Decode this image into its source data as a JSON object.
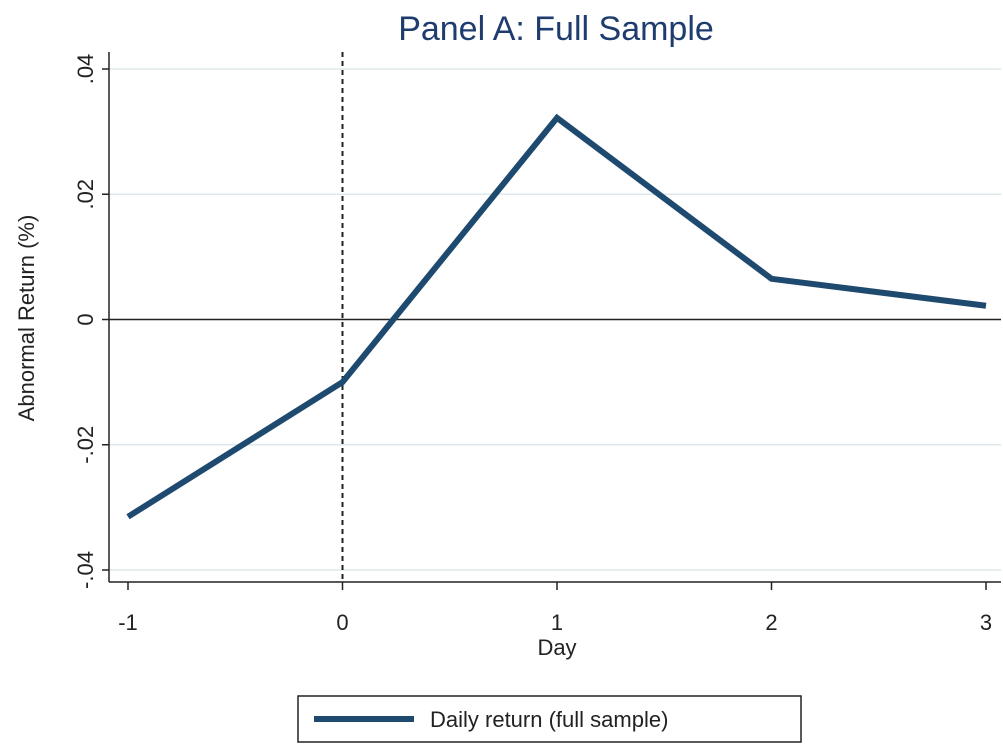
{
  "chart_data": {
    "type": "line",
    "title": "Panel A: Full Sample",
    "xlabel": "Day",
    "ylabel": "Abnormal Return (%)",
    "x": [
      -1,
      0,
      1,
      2,
      3
    ],
    "series": [
      {
        "name": "Daily return (full sample)",
        "values": [
          -0.0315,
          -0.01,
          0.0322,
          0.0065,
          0.0022
        ],
        "color": "#1f4a70"
      }
    ],
    "xlim": [
      -1,
      3
    ],
    "ylim": [
      -0.04,
      0.04
    ],
    "xticks": [
      -1,
      0,
      1,
      2,
      3
    ],
    "xtick_labels": [
      "-1",
      "0",
      "1",
      "2",
      "3"
    ],
    "yticks": [
      -0.04,
      -0.02,
      0,
      0.02,
      0.04
    ],
    "ytick_labels": [
      "-.04",
      "-.02",
      "0",
      ".02",
      ".04"
    ],
    "vline_x": 0,
    "hline_y": 0,
    "grid": true,
    "legend_position": "bottom",
    "colors": {
      "series": "#1f4a70",
      "title": "#1f3c6e",
      "grid": "#dde9ec",
      "axis": "#222222",
      "text": "#222222"
    }
  }
}
